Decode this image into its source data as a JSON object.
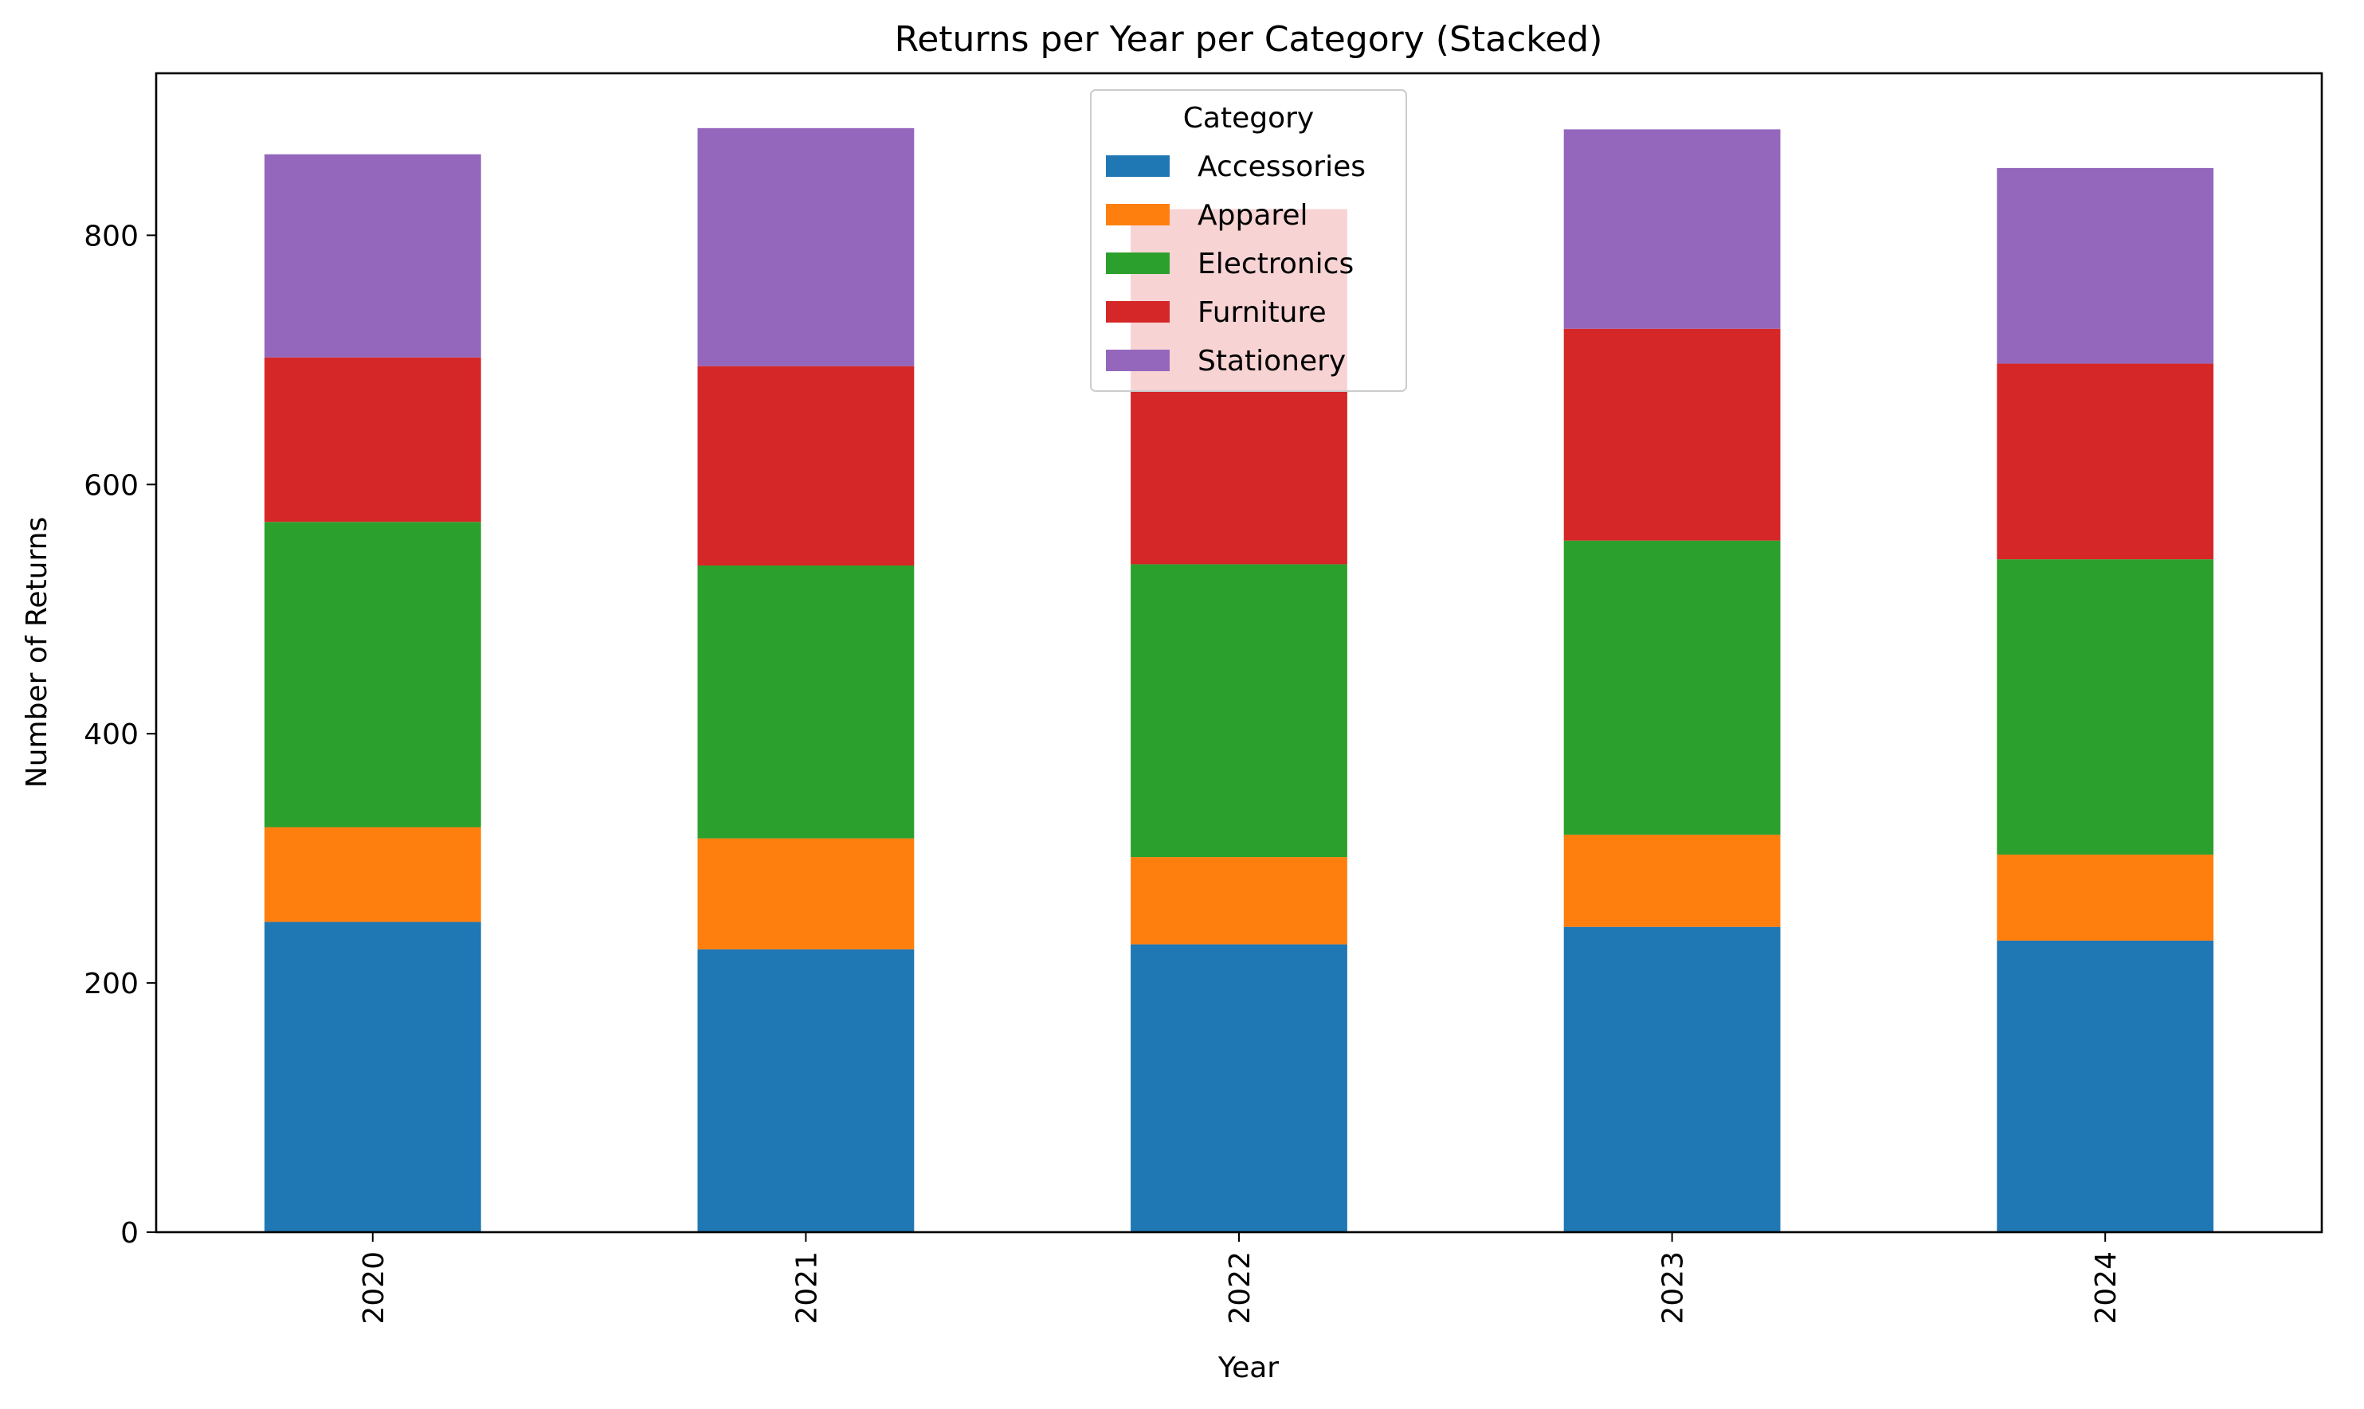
{
  "chart_data": {
    "type": "bar",
    "stacked": true,
    "title": "Returns per Year per Category (Stacked)",
    "xlabel": "Year",
    "ylabel": "Number of Returns",
    "categories": [
      "2020",
      "2021",
      "2022",
      "2023",
      "2024"
    ],
    "ylim": [
      0,
      930
    ],
    "yticks": [
      0,
      200,
      400,
      600,
      800
    ],
    "grid": false,
    "legend": {
      "title": "Category",
      "position": "top-center"
    },
    "series": [
      {
        "name": "Accessories",
        "color": "#1f77b4",
        "values": [
          249,
          227,
          231,
          245,
          234
        ]
      },
      {
        "name": "Apparel",
        "color": "#ff7f0e",
        "values": [
          76,
          89,
          70,
          74,
          69
        ]
      },
      {
        "name": "Electronics",
        "color": "#2ca02c",
        "values": [
          245,
          219,
          235,
          236,
          237
        ]
      },
      {
        "name": "Furniture",
        "color": "#d62728",
        "values": [
          132,
          160,
          285,
          170,
          157
        ]
      },
      {
        "name": "Stationery",
        "color": "#9467bd",
        "values": [
          163,
          191,
          0,
          160,
          157
        ]
      }
    ]
  }
}
